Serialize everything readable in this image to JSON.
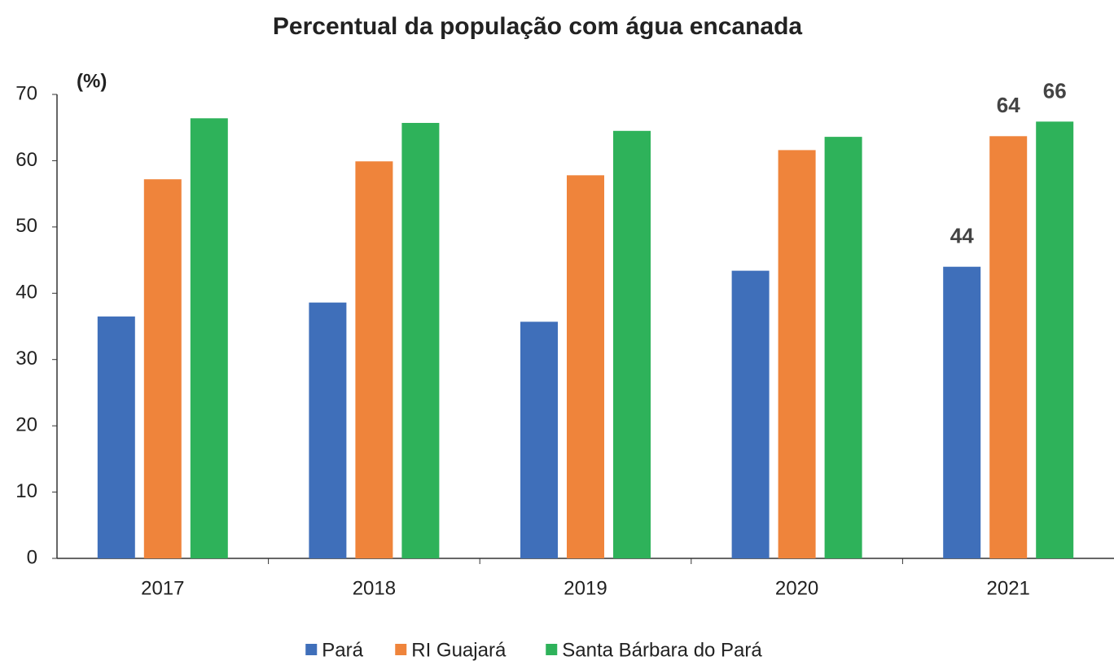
{
  "chart_data": {
    "type": "bar",
    "title": "Percentual da população com água encanada",
    "y_label": "(%)",
    "categories": [
      "2017",
      "2018",
      "2019",
      "2020",
      "2021"
    ],
    "series": [
      {
        "name": "Pará",
        "color": "#3f6fba",
        "values": [
          36.5,
          38.6,
          35.7,
          43.4,
          44
        ],
        "value_labels": [
          null,
          null,
          null,
          null,
          "44"
        ]
      },
      {
        "name": "RI Guajará",
        "color": "#ef843b",
        "values": [
          57.2,
          59.9,
          57.8,
          61.6,
          63.7
        ],
        "value_labels": [
          null,
          null,
          null,
          null,
          "64"
        ]
      },
      {
        "name": "Santa Bárbara do Pará",
        "color": "#2eb25a",
        "values": [
          66.4,
          65.7,
          64.5,
          63.6,
          65.9
        ],
        "value_labels": [
          null,
          null,
          null,
          null,
          "66"
        ]
      }
    ],
    "ylim": [
      0,
      70
    ],
    "yticks": [
      0,
      10,
      20,
      30,
      40,
      50,
      60,
      70
    ],
    "grid": false,
    "legend": "bottom"
  }
}
